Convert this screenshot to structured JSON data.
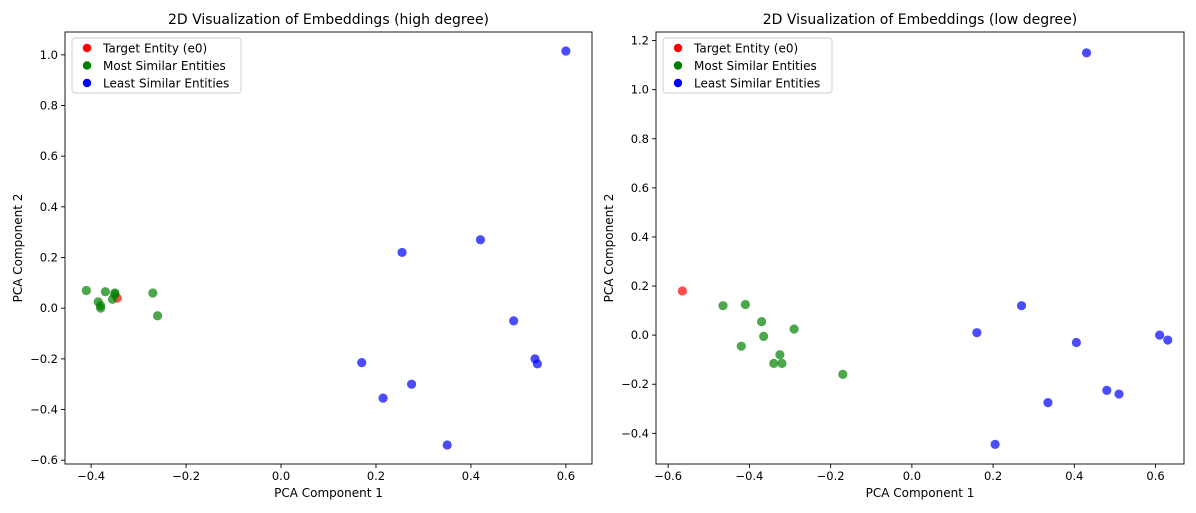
{
  "chart_data": [
    {
      "type": "scatter",
      "title": "2D Visualization of Embeddings (high degree)",
      "xlabel": "PCA Component 1",
      "ylabel": "PCA Component 2",
      "xlim": [
        -0.455,
        0.655
      ],
      "ylim": [
        -0.615,
        1.09
      ],
      "xticks": [
        -0.4,
        -0.2,
        0.0,
        0.2,
        0.4,
        0.6
      ],
      "xtick_labels": [
        "−0.4",
        "−0.2",
        "0.0",
        "0.2",
        "0.4",
        "0.6"
      ],
      "yticks": [
        -0.6,
        -0.4,
        -0.2,
        0.0,
        0.2,
        0.4,
        0.6,
        0.8,
        1.0
      ],
      "ytick_labels": [
        "−0.6",
        "−0.4",
        "−0.2",
        "0.0",
        "0.2",
        "0.4",
        "0.6",
        "0.8",
        "1.0"
      ],
      "grid": false,
      "legend_position": "top-left",
      "series": [
        {
          "name": "Target Entity (e0)",
          "color": "#ff0000",
          "points": [
            [
              -0.345,
              0.04
            ]
          ]
        },
        {
          "name": "Most Similar Entities",
          "color": "#008000",
          "points": [
            [
              -0.41,
              0.07
            ],
            [
              -0.385,
              0.025
            ],
            [
              -0.38,
              0.01
            ],
            [
              -0.38,
              0.0
            ],
            [
              -0.37,
              0.065
            ],
            [
              -0.355,
              0.035
            ],
            [
              -0.35,
              0.06
            ],
            [
              -0.35,
              0.055
            ],
            [
              -0.27,
              0.06
            ],
            [
              -0.26,
              -0.03
            ]
          ]
        },
        {
          "name": "Least Similar Entities",
          "color": "#0000ff",
          "points": [
            [
              0.6,
              1.015
            ],
            [
              0.42,
              0.27
            ],
            [
              0.255,
              0.22
            ],
            [
              0.49,
              -0.05
            ],
            [
              0.17,
              -0.215
            ],
            [
              0.535,
              -0.2
            ],
            [
              0.54,
              -0.22
            ],
            [
              0.275,
              -0.3
            ],
            [
              0.215,
              -0.355
            ],
            [
              0.35,
              -0.54
            ]
          ]
        }
      ]
    },
    {
      "type": "scatter",
      "title": "2D Visualization of Embeddings (low degree)",
      "xlabel": "PCA Component 1",
      "ylabel": "PCA Component 2",
      "xlim": [
        -0.63,
        0.67
      ],
      "ylim": [
        -0.525,
        1.235
      ],
      "xticks": [
        -0.6,
        -0.4,
        -0.2,
        0.0,
        0.2,
        0.4,
        0.6
      ],
      "xtick_labels": [
        "−0.6",
        "−0.4",
        "−0.2",
        "0.0",
        "0.2",
        "0.4",
        "0.6"
      ],
      "yticks": [
        -0.4,
        -0.2,
        0.0,
        0.2,
        0.4,
        0.6,
        0.8,
        1.0,
        1.2
      ],
      "ytick_labels": [
        "−0.4",
        "−0.2",
        "0.0",
        "0.2",
        "0.4",
        "0.6",
        "0.8",
        "1.0",
        "1.2"
      ],
      "grid": false,
      "legend_position": "top-left",
      "series": [
        {
          "name": "Target Entity (e0)",
          "color": "#ff0000",
          "points": [
            [
              -0.565,
              0.18
            ]
          ]
        },
        {
          "name": "Most Similar Entities",
          "color": "#008000",
          "points": [
            [
              -0.465,
              0.12
            ],
            [
              -0.41,
              0.125
            ],
            [
              -0.37,
              0.055
            ],
            [
              -0.365,
              -0.005
            ],
            [
              -0.29,
              0.025
            ],
            [
              -0.42,
              -0.045
            ],
            [
              -0.325,
              -0.08
            ],
            [
              -0.34,
              -0.115
            ],
            [
              -0.32,
              -0.115
            ],
            [
              -0.17,
              -0.16
            ]
          ]
        },
        {
          "name": "Least Similar Entities",
          "color": "#0000ff",
          "points": [
            [
              0.43,
              1.15
            ],
            [
              0.27,
              0.12
            ],
            [
              0.16,
              0.01
            ],
            [
              0.61,
              0.0
            ],
            [
              0.63,
              -0.02
            ],
            [
              0.405,
              -0.03
            ],
            [
              0.48,
              -0.225
            ],
            [
              0.51,
              -0.24
            ],
            [
              0.335,
              -0.275
            ],
            [
              0.205,
              -0.445
            ]
          ]
        }
      ]
    }
  ]
}
